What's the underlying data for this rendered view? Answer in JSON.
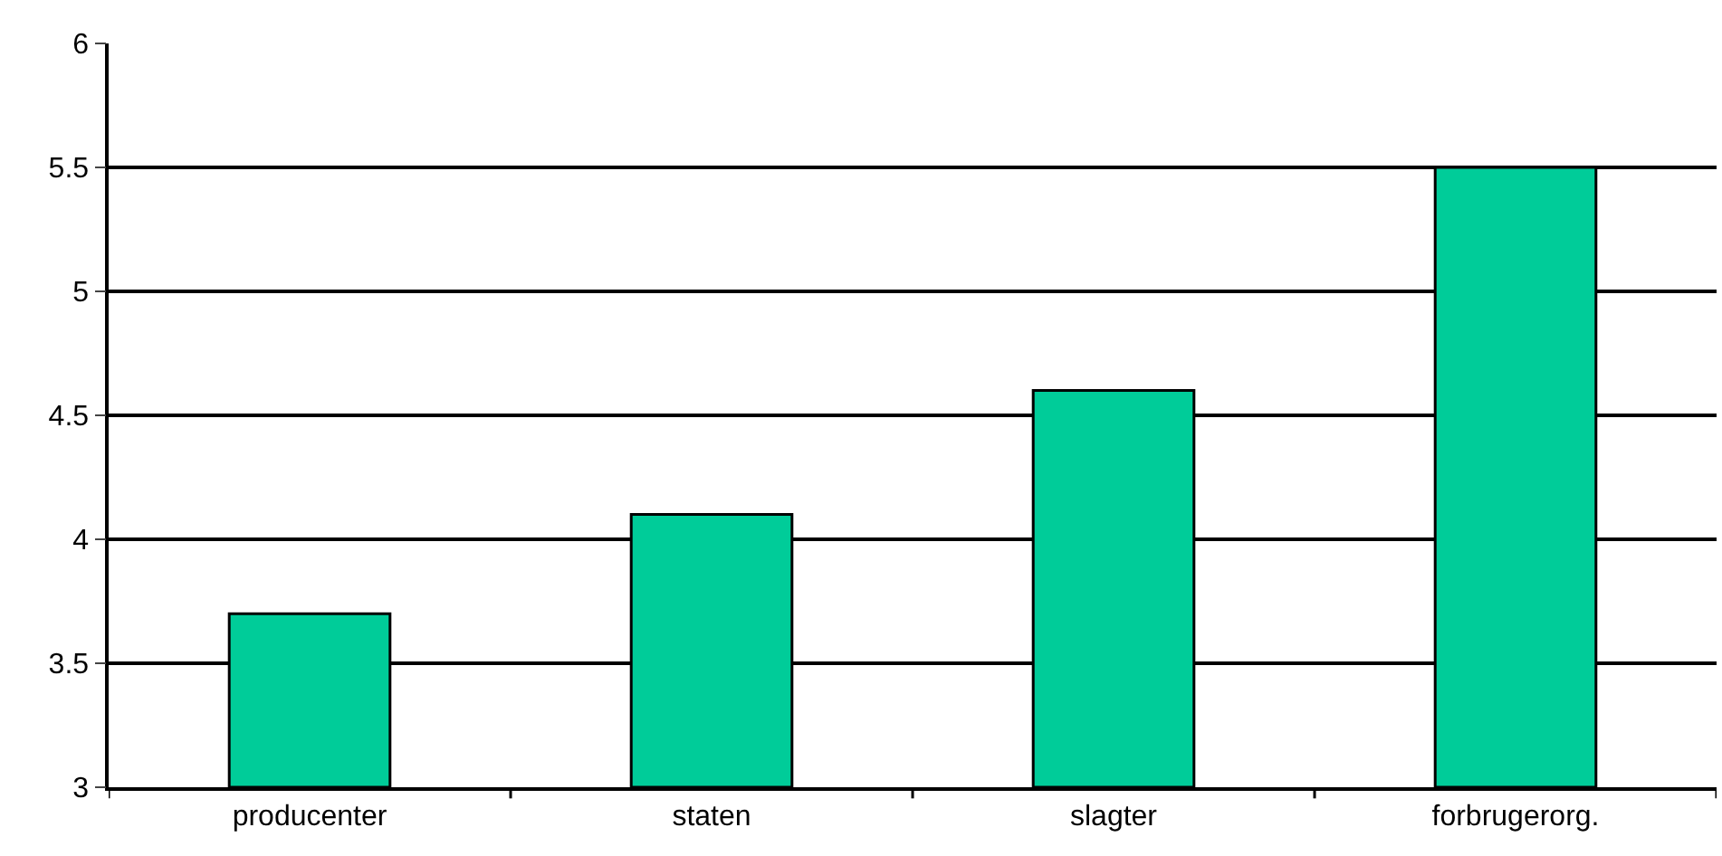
{
  "chart_data": {
    "type": "bar",
    "categories": [
      "producenter",
      "staten",
      "slagter",
      "forbrugerorg."
    ],
    "values": [
      3.7,
      4.1,
      4.6,
      5.5
    ],
    "color": "#00cc99",
    "ylim": [
      3,
      6
    ],
    "yticks": [
      3,
      3.5,
      4,
      4.5,
      5,
      5.5,
      6
    ],
    "grid": "y"
  }
}
